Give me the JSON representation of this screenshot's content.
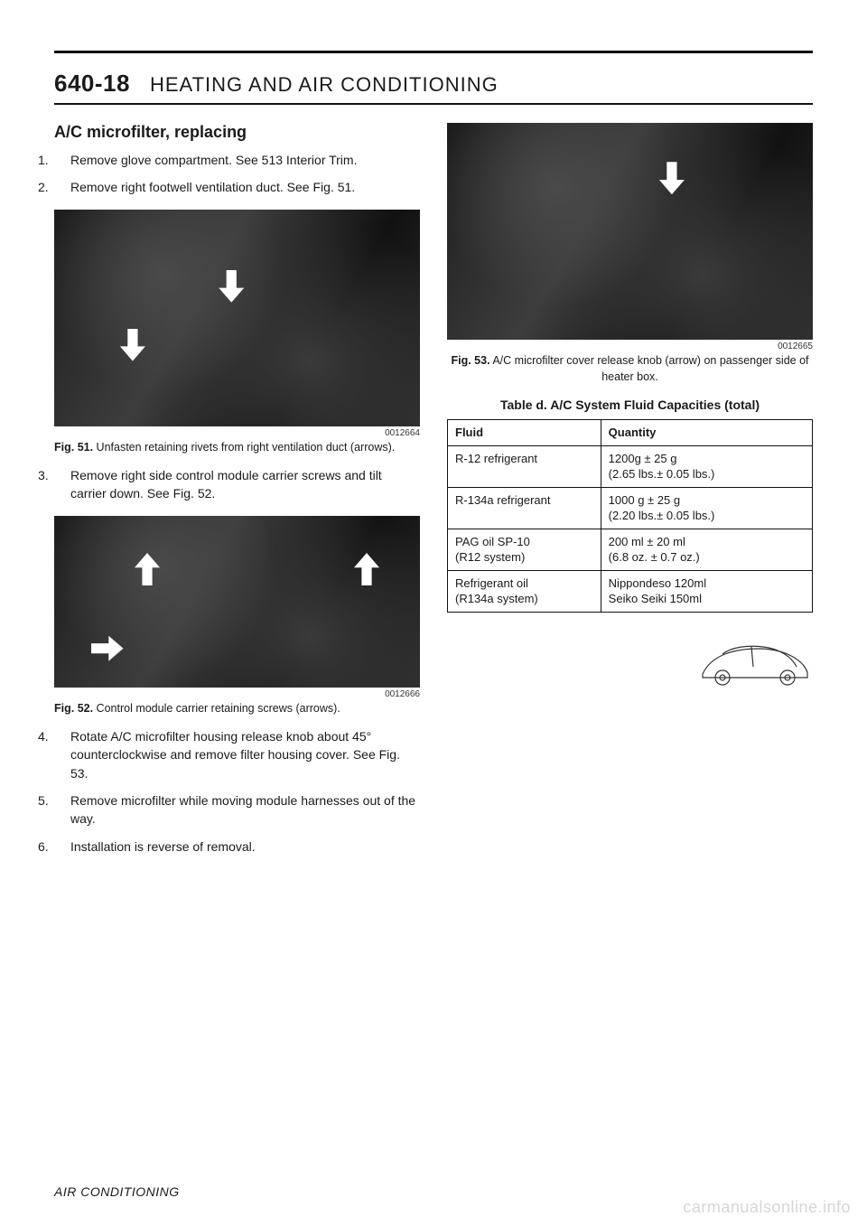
{
  "header": {
    "page_number": "640-18",
    "chapter_title": "HEATING AND AIR CONDITIONING"
  },
  "left": {
    "section_title": "A/C microfilter, replacing",
    "steps_a": [
      {
        "num": "1.",
        "text": "Remove glove compartment. See 513 Interior Trim."
      },
      {
        "num": "2.",
        "text": "Remove right footwell ventilation duct. See Fig. 51."
      }
    ],
    "fig51": {
      "id": "0012664",
      "caption_bold": "Fig. 51.",
      "caption_text": " Unfasten retaining rivets from right ventilation duct (arrows)."
    },
    "steps_b": [
      {
        "num": "3.",
        "text": "Remove right side control module carrier screws and tilt carrier down. See Fig. 52."
      }
    ],
    "fig52": {
      "id": "0012666",
      "caption_bold": "Fig. 52.",
      "caption_text": " Control module carrier retaining screws (arrows)."
    },
    "steps_c": [
      {
        "num": "4.",
        "text": "Rotate A/C microfilter housing release knob about 45° counterclockwise and remove filter housing cover. See Fig. 53."
      },
      {
        "num": "5.",
        "text": "Remove microfilter while moving module harnesses out of the way."
      },
      {
        "num": "6.",
        "text": "Installation is reverse of removal."
      }
    ]
  },
  "right": {
    "fig53": {
      "id": "0012665",
      "caption_bold": "Fig. 53.",
      "caption_text": " A/C microfilter cover release knob (arrow) on passenger side of heater box."
    },
    "table": {
      "title": "Table d. A/C System Fluid Capacities (total)",
      "columns": [
        "Fluid",
        "Quantity"
      ],
      "rows": [
        [
          "R-12 refrigerant",
          "1200g ± 25 g\n(2.65 lbs.± 0.05 lbs.)"
        ],
        [
          "R-134a refrigerant",
          "1000 g ± 25 g\n(2.20 lbs.± 0.05 lbs.)"
        ],
        [
          "PAG oil SP-10\n(R12 system)",
          "200 ml ± 20 ml\n(6.8 oz. ± 0.7 oz.)"
        ],
        [
          "Refrigerant oil\n(R134a system)",
          "Nippondeso 120ml\nSeiko Seiki 150ml"
        ]
      ],
      "col_widths": [
        "42%",
        "58%"
      ]
    }
  },
  "footer": {
    "text": "AIR CONDITIONING"
  },
  "watermark": "carmanualsonline.info",
  "colors": {
    "text": "#1a1a1a",
    "rule": "#111111",
    "photo_bg": "#2a2a2a",
    "watermark": "#d6d6d6"
  }
}
